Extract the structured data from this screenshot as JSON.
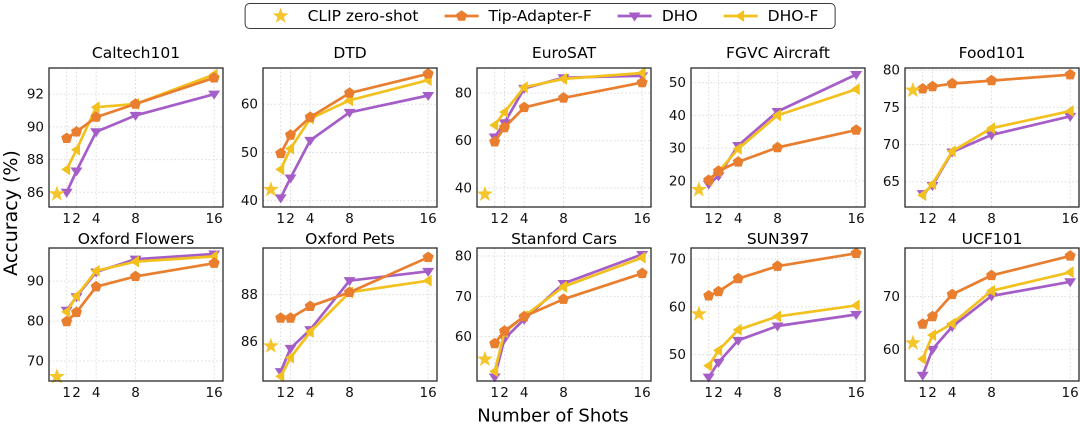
{
  "figure": {
    "y_axis_label": "Accuracy (%)",
    "x_axis_label": "Number of Shots"
  },
  "legend": {
    "items": [
      {
        "label": "CLIP zero-shot",
        "marker": "star",
        "color": "#f5c52c"
      },
      {
        "label": "Tip-Adapter-F",
        "marker": "pentagon",
        "color": "#e97e2e"
      },
      {
        "label": "DHO",
        "marker": "triangle-down",
        "color": "#a55ec8"
      },
      {
        "label": "DHO-F",
        "marker": "triangle-left",
        "color": "#f2c11e"
      }
    ]
  },
  "axes": {
    "x_scale": "linear",
    "xlim": [
      -0.8,
      16.9
    ],
    "x_ticks": [
      1,
      2,
      4,
      8,
      16
    ],
    "clip_star_x": 0,
    "grid": true,
    "colors": {
      "grid": "#dcdcdc",
      "frame": "#2a2a2a",
      "tick_text": "#111111"
    }
  },
  "chart_data": [
    {
      "type": "line",
      "title": "Caltech101",
      "x": [
        1,
        2,
        4,
        8,
        16
      ],
      "clip_zero_shot": 85.9,
      "series": [
        {
          "name": "Tip-Adapter-F",
          "values": [
            89.3,
            89.7,
            90.6,
            91.4,
            93.0
          ]
        },
        {
          "name": "DHO",
          "values": [
            86.0,
            87.3,
            89.7,
            90.7,
            92.0
          ]
        },
        {
          "name": "DHO-F",
          "values": [
            87.4,
            88.6,
            91.2,
            91.4,
            93.2
          ]
        }
      ],
      "y_ticks": [
        86,
        88,
        90,
        92
      ],
      "ylim": [
        85.1,
        93.6
      ]
    },
    {
      "type": "line",
      "title": "DTD",
      "x": [
        1,
        2,
        4,
        8,
        16
      ],
      "clip_zero_shot": 42.3,
      "series": [
        {
          "name": "Tip-Adapter-F",
          "values": [
            49.8,
            53.6,
            57.3,
            62.3,
            66.3
          ]
        },
        {
          "name": "DHO",
          "values": [
            40.6,
            44.7,
            52.5,
            58.3,
            61.8
          ]
        },
        {
          "name": "DHO-F",
          "values": [
            46.5,
            50.8,
            57.0,
            60.8,
            65.0
          ]
        }
      ],
      "y_ticks": [
        40,
        50,
        60
      ],
      "ylim": [
        38.7,
        67.5
      ]
    },
    {
      "type": "line",
      "title": "EuroSAT",
      "x": [
        1,
        2,
        4,
        8,
        16
      ],
      "clip_zero_shot": 37.4,
      "series": [
        {
          "name": "Tip-Adapter-F",
          "values": [
            59.5,
            65.5,
            74.0,
            78.0,
            84.5
          ]
        },
        {
          "name": "DHO",
          "values": [
            61.5,
            67.5,
            82.0,
            86.5,
            87.3
          ]
        },
        {
          "name": "DHO-F",
          "values": [
            66.5,
            72.0,
            82.5,
            86.0,
            88.5
          ]
        }
      ],
      "y_ticks": [
        40,
        60,
        80
      ],
      "ylim": [
        32.0,
        90.6
      ]
    },
    {
      "type": "line",
      "title": "FGVC Aircraft",
      "x": [
        1,
        2,
        4,
        8,
        16
      ],
      "clip_zero_shot": 17.3,
      "series": [
        {
          "name": "Tip-Adapter-F",
          "values": [
            20.2,
            23.0,
            25.8,
            30.2,
            35.5
          ]
        },
        {
          "name": "DHO",
          "values": [
            19.0,
            21.5,
            30.8,
            41.2,
            52.5
          ]
        },
        {
          "name": "DHO-F",
          "values": [
            20.0,
            22.8,
            29.8,
            40.0,
            48.0
          ]
        }
      ],
      "y_ticks": [
        20,
        30,
        40,
        50
      ],
      "ylim": [
        12.0,
        54.5
      ]
    },
    {
      "type": "line",
      "title": "Food101",
      "x": [
        1,
        2,
        4,
        8,
        16
      ],
      "clip_zero_shot": 77.3,
      "series": [
        {
          "name": "Tip-Adapter-F",
          "values": [
            77.5,
            77.8,
            78.2,
            78.6,
            79.4
          ]
        },
        {
          "name": "DHO",
          "values": [
            63.4,
            64.5,
            69.0,
            71.3,
            73.8
          ]
        },
        {
          "name": "DHO-F",
          "values": [
            63.2,
            64.7,
            69.1,
            72.2,
            74.5
          ]
        }
      ],
      "y_ticks": [
        65,
        70,
        75,
        80
      ],
      "ylim": [
        61.6,
        80.3
      ]
    },
    {
      "type": "line",
      "title": "Oxford Flowers",
      "x": [
        1,
        2,
        4,
        8,
        16
      ],
      "clip_zero_shot": 66.1,
      "series": [
        {
          "name": "Tip-Adapter-F",
          "values": [
            79.9,
            82.2,
            88.6,
            91.2,
            94.5
          ]
        },
        {
          "name": "DHO",
          "values": [
            82.7,
            86.1,
            92.3,
            95.5,
            96.8
          ]
        },
        {
          "name": "DHO-F",
          "values": [
            82.3,
            86.3,
            92.6,
            94.9,
            96.2
          ]
        }
      ],
      "y_ticks": [
        70,
        80,
        90
      ],
      "ylim": [
        65.0,
        98.3
      ]
    },
    {
      "type": "line",
      "title": "Oxford Pets",
      "x": [
        1,
        2,
        4,
        8,
        16
      ],
      "clip_zero_shot": 85.8,
      "series": [
        {
          "name": "Tip-Adapter-F",
          "values": [
            87.0,
            87.0,
            87.5,
            88.1,
            89.6
          ]
        },
        {
          "name": "DHO",
          "values": [
            84.7,
            85.7,
            86.5,
            88.6,
            89.0
          ]
        },
        {
          "name": "DHO-F",
          "values": [
            84.5,
            85.3,
            86.4,
            88.1,
            88.6
          ]
        }
      ],
      "y_ticks": [
        86,
        88
      ],
      "ylim": [
        84.3,
        90.0
      ]
    },
    {
      "type": "line",
      "title": "Stanford Cars",
      "x": [
        1,
        2,
        4,
        8,
        16
      ],
      "clip_zero_shot": 54.4,
      "series": [
        {
          "name": "Tip-Adapter-F",
          "values": [
            58.3,
            61.4,
            65.0,
            69.3,
            75.7
          ]
        },
        {
          "name": "DHO",
          "values": [
            50.0,
            59.5,
            64.3,
            73.2,
            80.4
          ]
        },
        {
          "name": "DHO-F",
          "values": [
            51.4,
            61.1,
            65.1,
            72.4,
            79.6
          ]
        }
      ],
      "y_ticks": [
        60,
        70,
        80
      ],
      "ylim": [
        49.0,
        82.0
      ]
    },
    {
      "type": "line",
      "title": "SUN397",
      "x": [
        1,
        2,
        4,
        8,
        16
      ],
      "clip_zero_shot": 58.5,
      "series": [
        {
          "name": "Tip-Adapter-F",
          "values": [
            62.3,
            63.2,
            65.9,
            68.5,
            71.2
          ]
        },
        {
          "name": "DHO",
          "values": [
            45.3,
            48.4,
            53.0,
            56.0,
            58.4
          ]
        },
        {
          "name": "DHO-F",
          "values": [
            47.7,
            50.9,
            55.2,
            58.0,
            60.3
          ]
        }
      ],
      "y_ticks": [
        50,
        60,
        70
      ],
      "ylim": [
        44.5,
        72.3
      ]
    },
    {
      "type": "line",
      "title": "UCF101",
      "x": [
        1,
        2,
        4,
        8,
        16
      ],
      "clip_zero_shot": 61.2,
      "series": [
        {
          "name": "Tip-Adapter-F",
          "values": [
            64.8,
            66.2,
            70.4,
            74.0,
            77.7
          ]
        },
        {
          "name": "DHO",
          "values": [
            55.1,
            60.0,
            64.3,
            70.1,
            72.8
          ]
        },
        {
          "name": "DHO-F",
          "values": [
            58.2,
            62.7,
            64.9,
            71.1,
            74.6
          ]
        }
      ],
      "y_ticks": [
        60,
        70
      ],
      "ylim": [
        54.0,
        79.2
      ]
    }
  ]
}
